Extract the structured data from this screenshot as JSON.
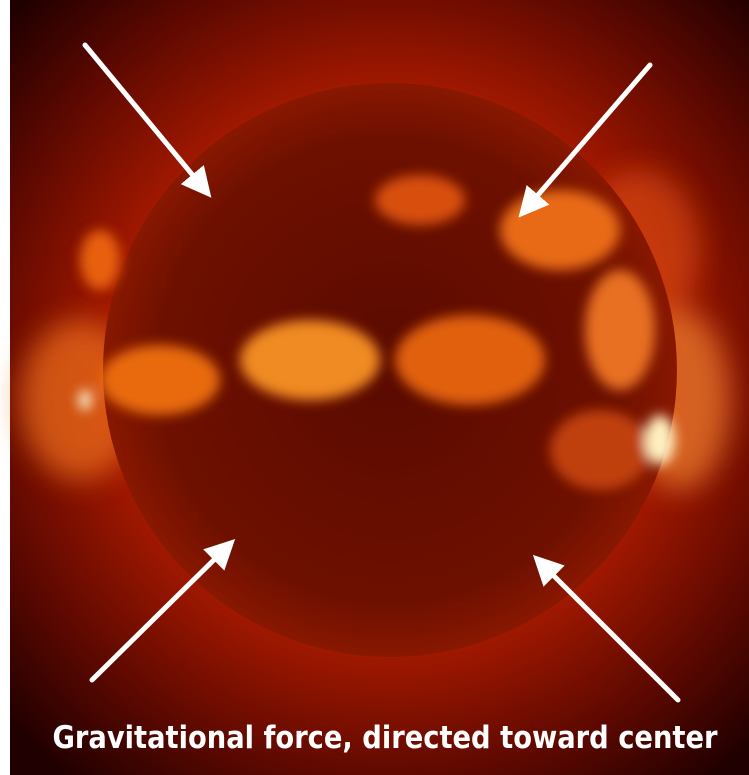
{
  "caption": "Gravitational force, directed toward center"
}
